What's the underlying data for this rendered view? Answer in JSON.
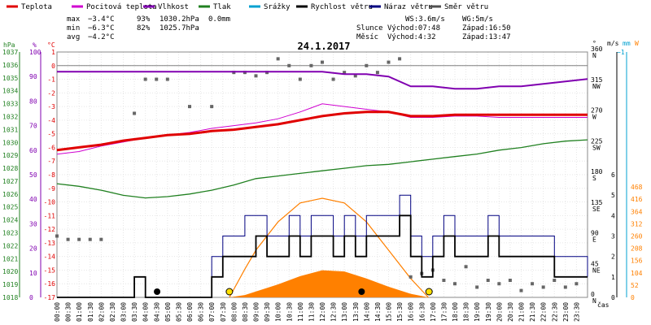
{
  "chart_data": {
    "type": "line",
    "title": "24.1.2017",
    "legend": [
      {
        "label": "Teplota",
        "color": "#e00000"
      },
      {
        "label": "Pocitová teplota",
        "color": "#d000d0"
      },
      {
        "label": "Vlhkost",
        "color": "#8000b0"
      },
      {
        "label": "Tlak",
        "color": "#208020"
      },
      {
        "label": "Srážky",
        "color": "#00a0d0"
      },
      {
        "label": "Rychlost větru",
        "color": "#000000"
      },
      {
        "label": "Náraz větru",
        "color": "#000080"
      },
      {
        "label": "Směr větru",
        "color": "#505050"
      }
    ],
    "stats": {
      "max": {
        "label": "max",
        "temp": "−3.4°C",
        "hum": "93%",
        "press": "1030.2hPa",
        "rain": "0.0mm"
      },
      "min": {
        "label": "min",
        "temp": "−6.3°C",
        "hum": "82%",
        "press": "1025.7hPa"
      },
      "avg": {
        "label": "avg",
        "temp": "−4.2°C"
      },
      "ws": "WS:3.6m/s",
      "wg": "WG:5m/s",
      "sun": {
        "label": "Slunce",
        "rise": "Východ:07:48",
        "set": "Západ:16:50"
      },
      "moon": {
        "label": "Měsíc",
        "rise": "Východ:4:32",
        "set": "Západ:13:47"
      }
    },
    "axes": {
      "hpa": {
        "unit": "hPa",
        "min": 1018,
        "max": 1037,
        "ticks": [
          1018,
          1019,
          1020,
          1021,
          1022,
          1023,
          1024,
          1025,
          1026,
          1027,
          1028,
          1029,
          1030,
          1031,
          1032,
          1033,
          1034,
          1035,
          1036,
          1037
        ],
        "color": "#208020"
      },
      "hum": {
        "unit": "%",
        "min": 0,
        "max": 100,
        "ticks": [
          0,
          10,
          20,
          30,
          40,
          50,
          60,
          70,
          80,
          90,
          100
        ],
        "color": "#8000b0"
      },
      "temp": {
        "unit": "°C",
        "min": -17,
        "max": 1,
        "ticks": [
          1,
          0,
          -1,
          -2,
          -3,
          -4,
          -5,
          -6,
          -7,
          -8,
          -9,
          -10,
          -11,
          -12,
          -13,
          -14,
          -15,
          -16,
          -17
        ],
        "color": "#e00000"
      },
      "dir": {
        "unit": "°",
        "ticks": [
          {
            "v": 360,
            "l": "N"
          },
          {
            "v": 315,
            "l": "NW"
          },
          {
            "v": 270,
            "l": "W"
          },
          {
            "v": 225,
            "l": "SW"
          },
          {
            "v": 180,
            "l": "S"
          },
          {
            "v": 135,
            "l": "SE"
          },
          {
            "v": 90,
            "l": "E"
          },
          {
            "v": 45,
            "l": "NE"
          },
          {
            "v": 0,
            "l": "N"
          }
        ]
      },
      "wind": {
        "unit": "m/s",
        "min": 0,
        "max": 6,
        "ticks": [
          0,
          1,
          2,
          3,
          4,
          5,
          6
        ],
        "top_label": "−1"
      },
      "rain": {
        "unit": "mm"
      },
      "solar": {
        "unit": "W",
        "min": 0,
        "max": 520,
        "ticks": [
          0,
          52,
          104,
          156,
          208,
          260,
          312,
          364,
          416,
          468
        ],
        "color": "#ff8000"
      },
      "time": {
        "label": "čas",
        "ticks": [
          "00:00",
          "00:30",
          "01:00",
          "01:30",
          "02:00",
          "02:30",
          "03:00",
          "03:30",
          "04:00",
          "04:30",
          "05:00",
          "05:30",
          "06:00",
          "06:30",
          "07:00",
          "07:30",
          "08:00",
          "08:30",
          "09:00",
          "09:30",
          "10:00",
          "10:30",
          "11:00",
          "11:30",
          "12:00",
          "12:30",
          "13:00",
          "13:30",
          "14:00",
          "14:30",
          "15:00",
          "15:30",
          "16:00",
          "16:30",
          "17:00",
          "17:30",
          "18:00",
          "18:30",
          "19:00",
          "19:30",
          "20:00",
          "20:30",
          "21:00",
          "21:30",
          "22:00",
          "22:30",
          "23:00",
          "23:30"
        ]
      }
    },
    "series": {
      "temperature": {
        "x_hours": [
          0,
          1,
          2,
          3,
          4,
          5,
          6,
          7,
          8,
          9,
          10,
          11,
          12,
          13,
          14,
          15,
          16,
          17,
          18,
          19,
          20,
          21,
          22,
          23,
          24
        ],
        "values": [
          -6.2,
          -6.0,
          -5.8,
          -5.5,
          -5.3,
          -5.1,
          -5.0,
          -4.8,
          -4.7,
          -4.5,
          -4.3,
          -4.0,
          -3.7,
          -3.5,
          -3.4,
          -3.4,
          -3.7,
          -3.7,
          -3.6,
          -3.6,
          -3.6,
          -3.6,
          -3.6,
          -3.6,
          -3.6
        ]
      },
      "feels_like": {
        "x_hours": [
          0,
          1,
          2,
          3,
          4,
          5,
          6,
          7,
          8,
          9,
          10,
          11,
          12,
          13,
          14,
          15,
          16,
          17,
          18,
          19,
          20,
          21,
          22,
          23,
          24
        ],
        "values": [
          -6.5,
          -6.3,
          -5.9,
          -5.6,
          -5.3,
          -5.1,
          -4.9,
          -4.6,
          -4.4,
          -4.2,
          -3.9,
          -3.4,
          -2.8,
          -3.0,
          -3.2,
          -3.4,
          -3.8,
          -3.8,
          -3.7,
          -3.7,
          -3.8,
          -3.8,
          -3.8,
          -3.8,
          -3.8
        ]
      },
      "humidity": {
        "x_hours": [
          0,
          1,
          2,
          3,
          4,
          5,
          6,
          7,
          8,
          9,
          10,
          11,
          12,
          13,
          14,
          15,
          16,
          17,
          18,
          19,
          20,
          21,
          22,
          23,
          24
        ],
        "values": [
          92,
          92,
          92,
          92,
          92,
          92,
          92,
          92,
          92,
          92,
          92,
          92,
          92,
          91,
          91,
          90,
          86,
          86,
          85,
          85,
          86,
          86,
          87,
          88,
          89
        ]
      },
      "pressure": {
        "x_hours": [
          0,
          1,
          2,
          3,
          4,
          5,
          6,
          7,
          8,
          9,
          10,
          11,
          12,
          13,
          14,
          15,
          16,
          17,
          18,
          19,
          20,
          21,
          22,
          23,
          24
        ],
        "values": [
          1026.8,
          1026.6,
          1026.3,
          1025.9,
          1025.7,
          1025.8,
          1026.0,
          1026.3,
          1026.7,
          1027.2,
          1027.4,
          1027.6,
          1027.8,
          1028.0,
          1028.2,
          1028.3,
          1028.5,
          1028.7,
          1028.9,
          1029.1,
          1029.4,
          1029.6,
          1029.9,
          1030.1,
          1030.2
        ]
      },
      "wind_speed": {
        "x_hours": [
          0,
          3,
          3.5,
          4,
          6.5,
          7,
          7.5,
          8,
          8.5,
          9,
          9.5,
          10,
          10.5,
          11,
          11.5,
          12,
          12.5,
          13,
          13.5,
          14,
          14.5,
          15,
          15.5,
          16,
          16.5,
          17,
          17.5,
          18,
          18.5,
          19,
          19.5,
          20,
          20.5,
          21,
          21.5,
          22,
          22.5,
          23,
          23.5,
          24
        ],
        "values": [
          0,
          0,
          1,
          0,
          0,
          1,
          2,
          2,
          2,
          3,
          2,
          2,
          3,
          2,
          3,
          3,
          2,
          3,
          2,
          3,
          3,
          3,
          4,
          2,
          1,
          2,
          3,
          2,
          2,
          2,
          3,
          2,
          2,
          2,
          2,
          2,
          1,
          1,
          1,
          1
        ]
      },
      "wind_gust": {
        "x_hours": [
          0,
          3,
          3.5,
          4,
          6.5,
          7,
          7.5,
          8,
          8.5,
          9,
          9.5,
          10,
          10.5,
          11,
          11.5,
          12,
          12.5,
          13,
          13.5,
          14,
          14.5,
          15,
          15.5,
          16,
          16.5,
          17,
          17.5,
          18,
          18.5,
          19,
          19.5,
          20,
          20.5,
          21,
          21.5,
          22,
          22.5,
          23,
          23.5,
          24
        ],
        "values": [
          0,
          0,
          1,
          0,
          0,
          2,
          3,
          3,
          4,
          4,
          3,
          3,
          4,
          3,
          4,
          4,
          3,
          4,
          3,
          4,
          4,
          4,
          5,
          3,
          2,
          3,
          4,
          3,
          3,
          3,
          4,
          3,
          3,
          3,
          3,
          3,
          2,
          2,
          2,
          1
        ]
      },
      "solar": {
        "x_hours": [
          7.8,
          8.5,
          9,
          10,
          11,
          12,
          13,
          14,
          15,
          16,
          16.8
        ],
        "values": [
          0,
          10,
          25,
          55,
          90,
          115,
          110,
          80,
          45,
          15,
          0
        ]
      },
      "solar_theory": {
        "x_hours": [
          7.8,
          8.5,
          9,
          10,
          11,
          12,
          13,
          14,
          15,
          16,
          16.8
        ],
        "values": [
          0,
          120,
          200,
          320,
          400,
          420,
          400,
          320,
          200,
          80,
          0
        ]
      },
      "wind_dir": {
        "x_hours": [
          0,
          0.5,
          1,
          1.5,
          2,
          3.5,
          4,
          4.5,
          5,
          6,
          7,
          8,
          8.5,
          9,
          9.5,
          10,
          10.5,
          11,
          11.5,
          12,
          12.5,
          13,
          13.5,
          14,
          14.5,
          15,
          15.5,
          16,
          16.5,
          17,
          17.5,
          18,
          18.5,
          19,
          19.5,
          20,
          20.5,
          21,
          21.5,
          22,
          22.5,
          23,
          23.5
        ],
        "values": [
          90,
          85,
          85,
          85,
          85,
          270,
          320,
          320,
          320,
          280,
          280,
          330,
          330,
          325,
          330,
          350,
          340,
          320,
          340,
          345,
          320,
          330,
          325,
          340,
          330,
          345,
          350,
          30,
          35,
          40,
          25,
          20,
          45,
          15,
          25,
          20,
          25,
          10,
          20,
          15,
          25,
          15,
          20
        ]
      }
    }
  }
}
